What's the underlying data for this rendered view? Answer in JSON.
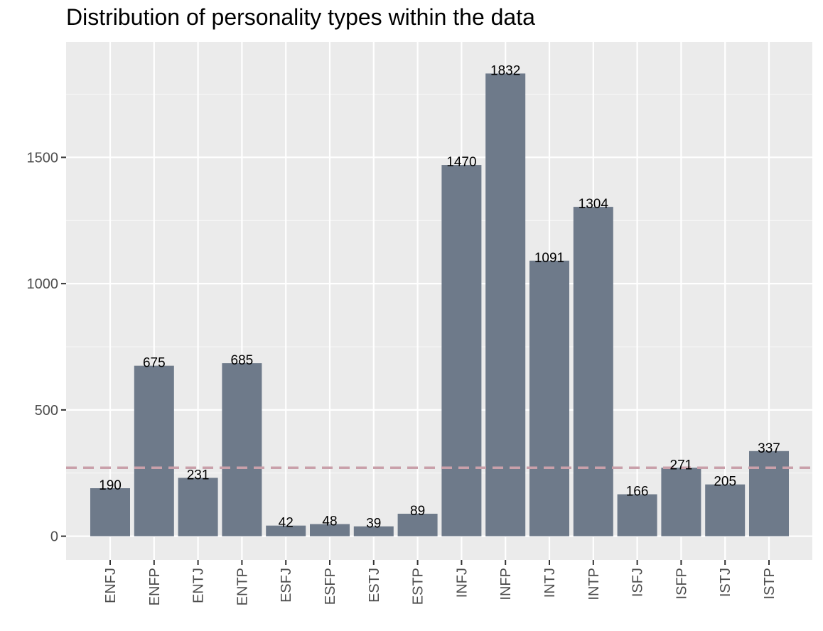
{
  "chart_data": {
    "type": "bar",
    "title": "Distribution of personality types within the data",
    "xlabel": "",
    "ylabel": "",
    "categories": [
      "ENFJ",
      "ENFP",
      "ENTJ",
      "ENTP",
      "ESFJ",
      "ESFP",
      "ESTJ",
      "ESTP",
      "INFJ",
      "INFP",
      "INTJ",
      "INTP",
      "ISFJ",
      "ISFP",
      "ISTJ",
      "ISTP"
    ],
    "values": [
      190,
      675,
      231,
      685,
      42,
      48,
      39,
      89,
      1470,
      1832,
      1091,
      1304,
      166,
      271,
      205,
      337
    ],
    "data_labels": [
      "190",
      "675",
      "231",
      "685",
      "42",
      "48",
      "39",
      "89",
      "1470",
      "1832",
      "1091",
      "1304",
      "166",
      "271",
      "205",
      "337"
    ],
    "ylim": [
      -94,
      1957
    ],
    "yticks": [
      0,
      500,
      1000,
      1500
    ],
    "ytick_labels": [
      "0",
      "500",
      "1000",
      "1500"
    ],
    "reference_line": {
      "value": 271,
      "style": "dashed"
    },
    "grid": true,
    "legend": "none",
    "colors": {
      "bar": "#6e7a8a",
      "panel_background": "#ebebeb",
      "grid_major": "#ffffff",
      "reference_line": "#c9a0aa",
      "tick_text": "#4d4d4d",
      "data_label_text": "#000000"
    }
  }
}
